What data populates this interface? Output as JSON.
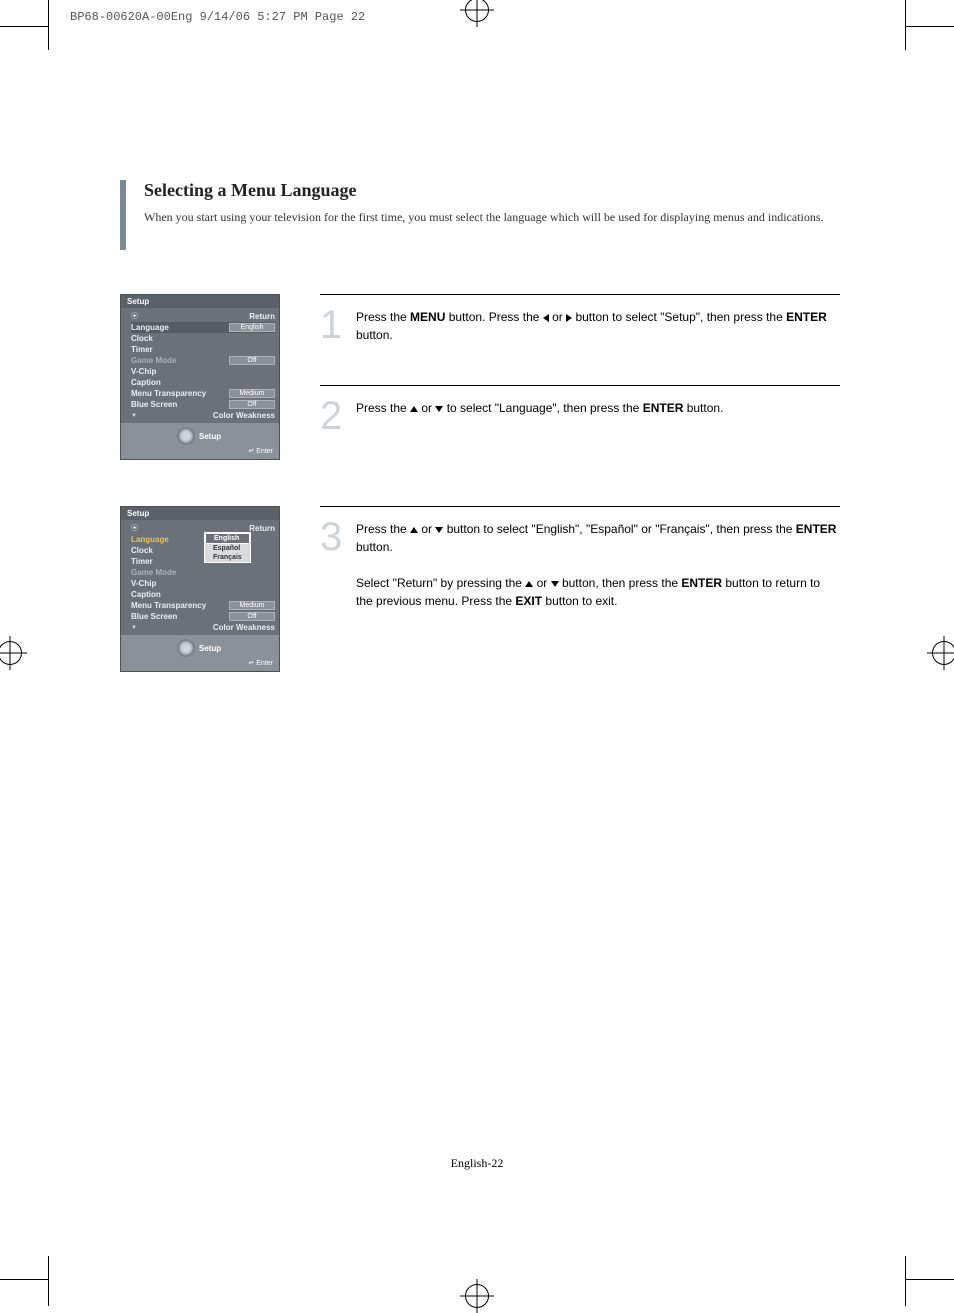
{
  "header_line": "BP68-00620A-00Eng  9/14/06  5:27 PM  Page 22",
  "section_title": "Selecting a Menu Language",
  "intro_text": "When you start using your television for the first time, you must select the language which will be used for displaying menus and indications.",
  "panel1": {
    "title": "Setup",
    "rows": [
      {
        "label": "Return",
        "value": "",
        "cls": "return"
      },
      {
        "label": "Language",
        "value": "English",
        "cls": "selected"
      },
      {
        "label": "Clock",
        "value": ""
      },
      {
        "label": "Timer",
        "value": ""
      },
      {
        "label": "Game Mode",
        "value": "Off",
        "cls": "dim"
      },
      {
        "label": "V-Chip",
        "value": ""
      },
      {
        "label": "Caption",
        "value": ""
      },
      {
        "label": "Menu Transparency",
        "value": "Medium"
      },
      {
        "label": "Blue Screen",
        "value": "Off"
      },
      {
        "label": "Color Weakness",
        "value": "",
        "cls": "more"
      }
    ],
    "footer_label": "Setup",
    "enter_label": "Enter"
  },
  "panel2": {
    "title": "Setup",
    "rows": [
      {
        "label": "Return",
        "value": "",
        "cls": "return"
      },
      {
        "label": "Language",
        "value": "",
        "cls": "hl"
      },
      {
        "label": "Clock",
        "value": ""
      },
      {
        "label": "Timer",
        "value": ""
      },
      {
        "label": "Game Mode",
        "value": "",
        "cls": "dim"
      },
      {
        "label": "V-Chip",
        "value": ""
      },
      {
        "label": "Caption",
        "value": ""
      },
      {
        "label": "Menu Transparency",
        "value": "Medium"
      },
      {
        "label": "Blue Screen",
        "value": "Off"
      },
      {
        "label": "Color Weakness",
        "value": "",
        "cls": "more"
      }
    ],
    "dropdown": [
      "English",
      "Español",
      "Français"
    ],
    "footer_label": "Setup",
    "enter_label": "Enter"
  },
  "steps": {
    "s1": {
      "num": "1",
      "pre": "Press the ",
      "b1": "MENU",
      "mid1": " button. Press the ",
      "mid2": " or ",
      "mid3": " button to select \"Setup\", then press the ",
      "b2": "ENTER",
      "post": " button."
    },
    "s2": {
      "num": "2",
      "pre": "Press the ",
      "mid1": " or ",
      "mid2": " to select \"Language\", then press the ",
      "b1": "ENTER",
      "post": " button."
    },
    "s3": {
      "num": "3",
      "pre": "Press the ",
      "mid1": " or ",
      "mid2": " button to select \"English\", \"Español\" or \"Français\", then press the ",
      "b1": "ENTER",
      "post": " button.",
      "extra_pre": "Select \"Return\" by pressing the ",
      "extra_mid1": " or ",
      "extra_mid2": " button, then press the ",
      "extra_b1": "ENTER",
      "extra_mid3": " button to return to the previous menu. Press the ",
      "extra_b2": "EXIT",
      "extra_post": " button to exit."
    }
  },
  "page_number": "English-22"
}
